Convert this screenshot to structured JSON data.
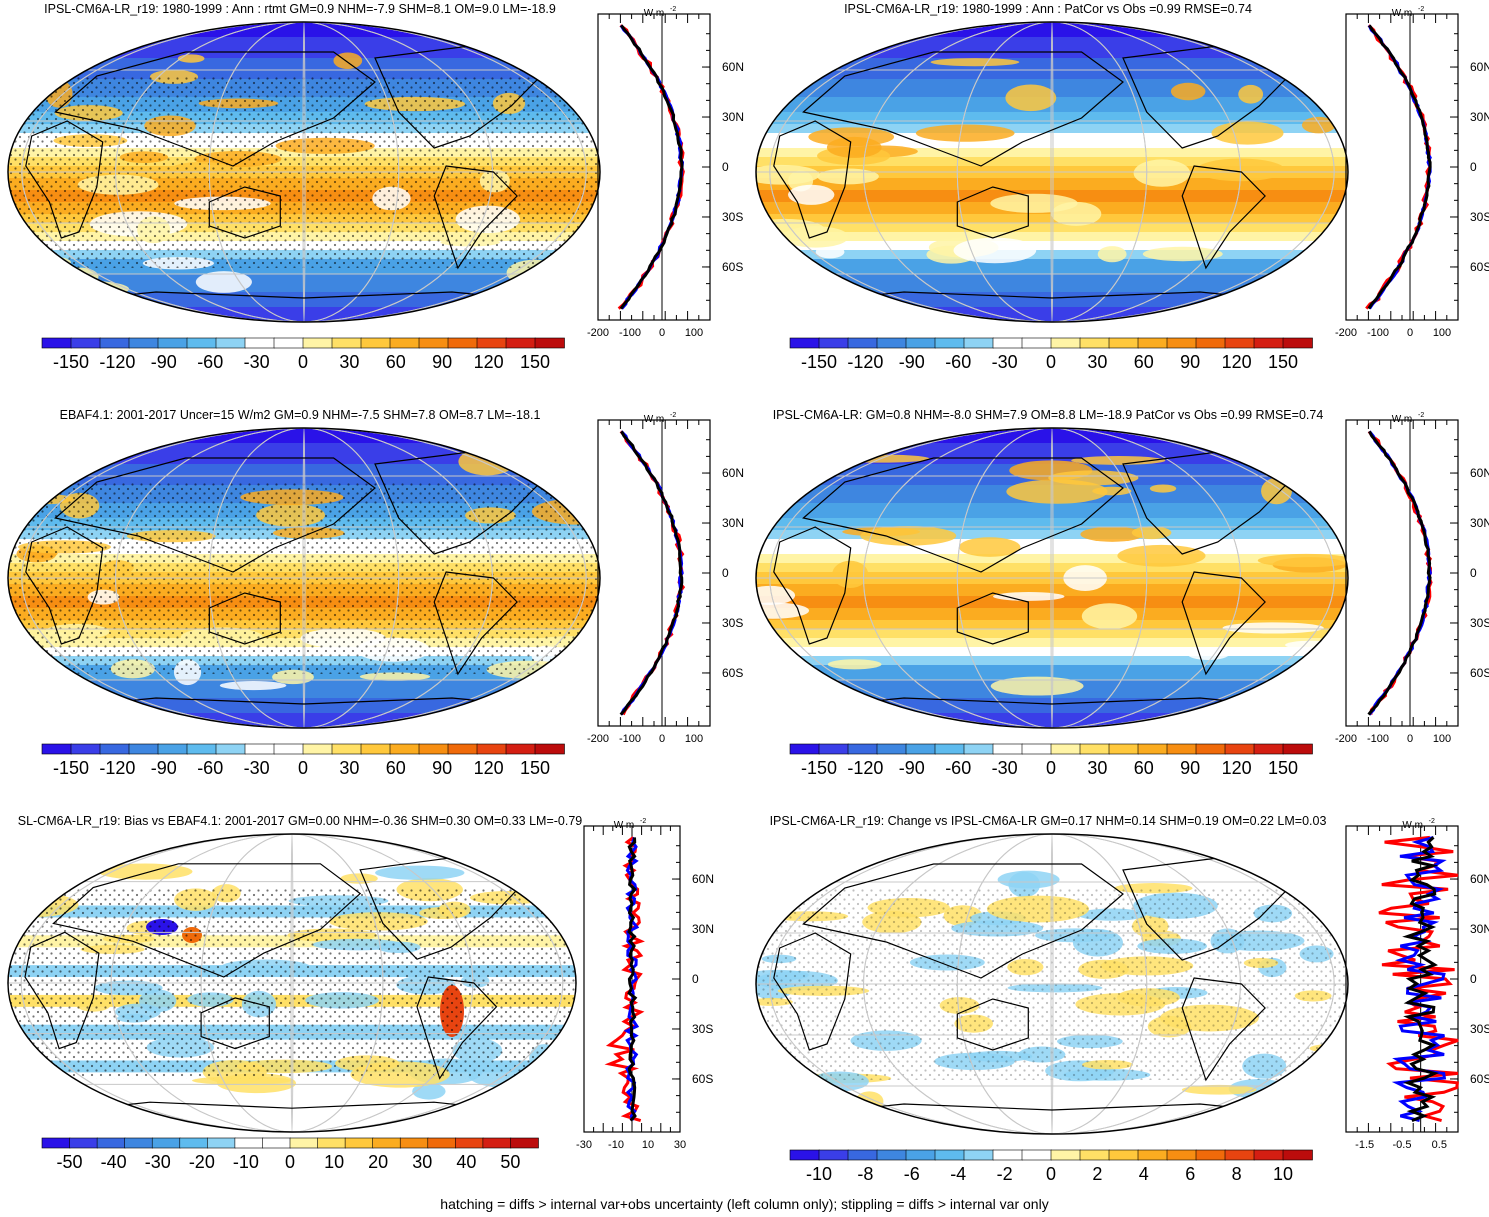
{
  "footer": "hatching = diffs > internal var+obs uncertainty (left column only); stippling = diffs > internal var only",
  "profile_unit": "W m",
  "profile_unit_exp": "-2",
  "lat_labels": [
    "60N",
    "30N",
    "0",
    "30S",
    "60S"
  ],
  "colors": {
    "scale": [
      "#2a12e8",
      "#3a3ee8",
      "#3868e0",
      "#3e86e0",
      "#4aa2e6",
      "#5ebbee",
      "#8ed3f4",
      "#ffffff",
      "#ffffff",
      "#fff4a6",
      "#ffe066",
      "#ffc83c",
      "#fbac20",
      "#f78e12",
      "#f06a0a",
      "#e84410",
      "#d41e12",
      "#bc0c0c"
    ],
    "profile_red": "#ff0000",
    "profile_blue": "#0000ff",
    "profile_black": "#000000"
  },
  "panels": [
    {
      "title": "IPSL-CM6A-LR_r19: 1980-1999 : Ann : rtmt GM=0.9 NHM=-7.9 SHM=8.1 OM=9.0 LM=-18.9",
      "kind": "mean",
      "colorbar_labels": [
        "-150",
        "-120",
        "-90",
        "-60",
        "-30",
        "0",
        "30",
        "60",
        "90",
        "120",
        "150"
      ],
      "profile_xlabels": [
        "-200",
        "-100",
        "0",
        "100"
      ],
      "profile_xrange": [
        -200,
        150
      ]
    },
    {
      "title": "IPSL-CM6A-LR_r19: 1980-1999 : Ann : PatCor vs Obs =0.99 RMSE=0.74",
      "kind": "mean",
      "colorbar_labels": [
        "-150",
        "-120",
        "-90",
        "-60",
        "-30",
        "0",
        "30",
        "60",
        "90",
        "120",
        "150"
      ],
      "profile_xlabels": [
        "-200",
        "-100",
        "0",
        "100"
      ],
      "profile_xrange": [
        -200,
        150
      ]
    },
    {
      "title": "EBAF4.1: 2001-2017 Uncer=15 W/m2 GM=0.9 NHM=-7.5 SHM=7.8 OM=8.7 LM=-18.1",
      "kind": "mean",
      "colorbar_labels": [
        "-150",
        "-120",
        "-90",
        "-60",
        "-30",
        "0",
        "30",
        "60",
        "90",
        "120",
        "150"
      ],
      "profile_xlabels": [
        "-200",
        "-100",
        "0",
        "100"
      ],
      "profile_xrange": [
        -200,
        150
      ]
    },
    {
      "title": "IPSL-CM6A-LR: GM=0.8 NHM=-8.0 SHM=7.9 OM=8.8 LM=-18.9 PatCor vs Obs =0.99 RMSE=0.74",
      "kind": "mean",
      "colorbar_labels": [
        "-150",
        "-120",
        "-90",
        "-60",
        "-30",
        "0",
        "30",
        "60",
        "90",
        "120",
        "150"
      ],
      "profile_xlabels": [
        "-200",
        "-100",
        "0",
        "100"
      ],
      "profile_xrange": [
        -200,
        150
      ]
    },
    {
      "title": "SL-CM6A-LR_r19: Bias vs EBAF4.1: 2001-2017 GM=0.00 NHM=-0.36 SHM=0.30 OM=0.33 LM=-0.79",
      "kind": "bias",
      "colorbar_labels": [
        "-50",
        "-40",
        "-30",
        "-20",
        "-10",
        "0",
        "10",
        "20",
        "30",
        "40",
        "50"
      ],
      "profile_xlabels": [
        "-30",
        "-10",
        "10",
        "30"
      ],
      "profile_xrange": [
        -30,
        30
      ]
    },
    {
      "title": "IPSL-CM6A-LR_r19: Change vs IPSL-CM6A-LR GM=0.17 NHM=0.14 SHM=0.19 OM=0.22 LM=0.03",
      "kind": "change",
      "colorbar_labels": [
        "-10",
        "-8",
        "-6",
        "-4",
        "-2",
        "0",
        "2",
        "4",
        "6",
        "8",
        "10"
      ],
      "profile_xlabels": [
        "-1.5",
        "-0.5",
        "0.5"
      ],
      "profile_xrange": [
        -2,
        1
      ]
    }
  ]
}
